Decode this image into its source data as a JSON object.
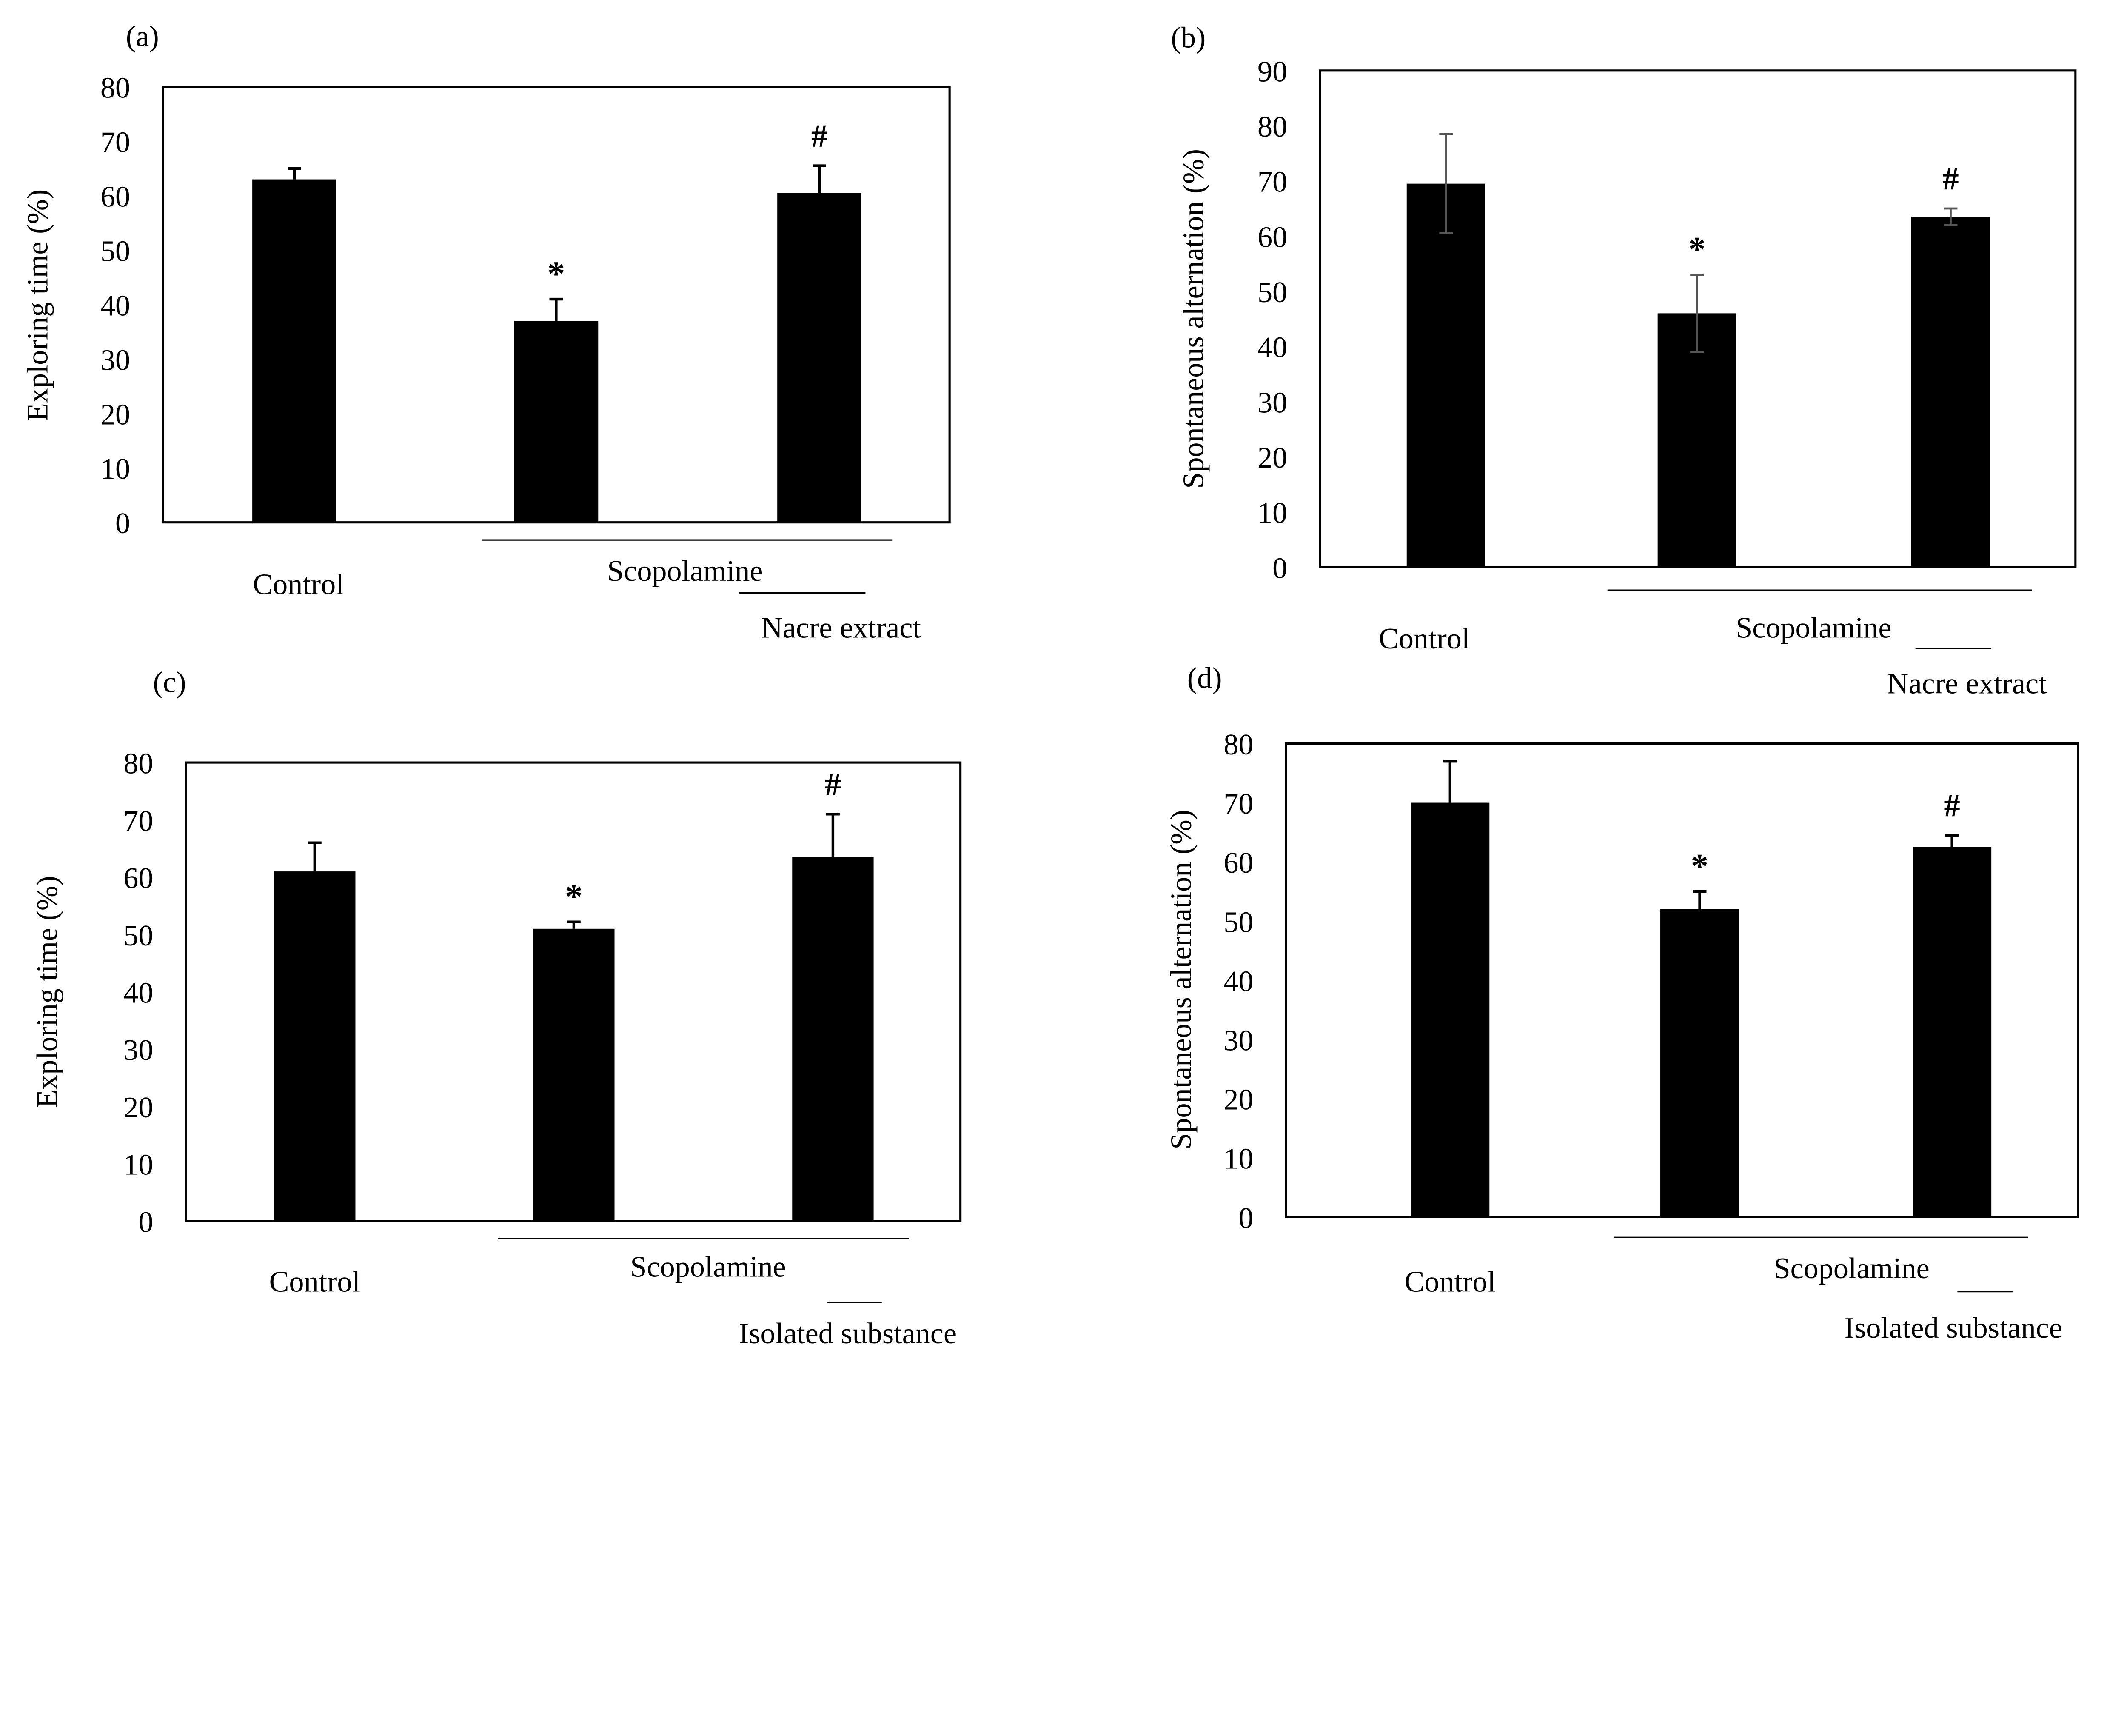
{
  "chart_data": [
    {
      "type": "bar",
      "panel_label": "(a)",
      "ylabel": "Exploring time (%)",
      "ylim": [
        0,
        80
      ],
      "yticks": [
        0,
        10,
        20,
        30,
        40,
        50,
        60,
        70,
        80
      ],
      "categories": [
        "Control",
        "Scopolamine",
        "Nacre extract"
      ],
      "values": [
        63,
        37,
        60.5
      ],
      "error_upper": [
        2,
        4,
        5
      ],
      "error_style": "upper-only",
      "error_color": "#000000",
      "annotations": [
        "",
        "*",
        "#"
      ],
      "group_labels": {
        "scopolamine": "Scopolamine",
        "treatment": "Nacre extract",
        "control": "Control"
      },
      "bar_color": "#000000",
      "grid": false
    },
    {
      "type": "bar",
      "panel_label": "(b)",
      "ylabel": "Spontaneous alternation (%)",
      "ylim": [
        0,
        90
      ],
      "yticks": [
        0,
        10,
        20,
        30,
        40,
        50,
        60,
        70,
        80,
        90
      ],
      "categories": [
        "Control",
        "Scopolamine",
        "Nacre extract"
      ],
      "values": [
        69.5,
        46,
        63.5
      ],
      "error_upper": [
        9,
        7,
        1.5
      ],
      "error_style": "both",
      "error_color": "#555555",
      "annotations": [
        "",
        "*",
        "#"
      ],
      "group_labels": {
        "scopolamine": "Scopolamine",
        "treatment": "Nacre extract",
        "control": "Control"
      },
      "bar_color": "#000000",
      "grid": false
    },
    {
      "type": "bar",
      "panel_label": "(c)",
      "ylabel": "Exploring time (%)",
      "ylim": [
        0,
        80
      ],
      "yticks": [
        0,
        10,
        20,
        30,
        40,
        50,
        60,
        70,
        80
      ],
      "categories": [
        "Control",
        "Scopolamine",
        "Isolated substance"
      ],
      "values": [
        61,
        51,
        63.5
      ],
      "error_upper": [
        5,
        1.2,
        7.5
      ],
      "error_style": "upper-only",
      "error_color": "#000000",
      "annotations": [
        "",
        "*",
        "#"
      ],
      "group_labels": {
        "scopolamine": "Scopolamine",
        "treatment": "Isolated substance",
        "control": "Control"
      },
      "bar_color": "#000000",
      "grid": false
    },
    {
      "type": "bar",
      "panel_label": "(d)",
      "ylabel": "Spontaneous alternation (%)",
      "ylim": [
        0,
        80
      ],
      "yticks": [
        0,
        10,
        20,
        30,
        40,
        50,
        60,
        70,
        80
      ],
      "categories": [
        "Control",
        "Scopolamine",
        "Isolated substance"
      ],
      "values": [
        70,
        52,
        62.5
      ],
      "error_upper": [
        7,
        3,
        2
      ],
      "error_style": "upper-only",
      "error_color": "#000000",
      "annotations": [
        "",
        "*",
        "#"
      ],
      "group_labels": {
        "scopolamine": "Scopolamine",
        "treatment": "Isolated substance",
        "control": "Control"
      },
      "bar_color": "#000000",
      "grid": false
    }
  ]
}
